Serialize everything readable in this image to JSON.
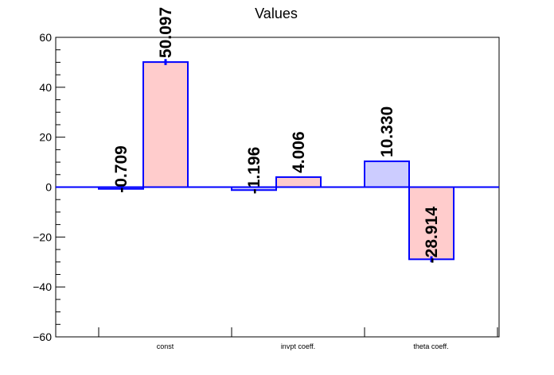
{
  "chart_data": {
    "type": "bar",
    "title": "Values",
    "xlabel": "",
    "ylabel": "",
    "ylim": [
      -60,
      60
    ],
    "yticks": [
      -60,
      -40,
      -20,
      0,
      20,
      40,
      60
    ],
    "categories": [
      "const",
      "invpt coeff.",
      "theta coeff."
    ],
    "bars": [
      {
        "category": "const",
        "value": -0.709,
        "label": "-0.709",
        "fill": "#ccccff",
        "error": 0.3
      },
      {
        "category": "const",
        "value": 50.097,
        "label": "50.097",
        "fill": "#ffcccc",
        "error": 1.2
      },
      {
        "category": "invpt coeff.",
        "value": -1.196,
        "label": "-1.196",
        "fill": "#ccccff",
        "error": 0.3
      },
      {
        "category": "invpt coeff.",
        "value": 4.006,
        "label": "4.006",
        "fill": "#ffcccc",
        "error": 0.3
      },
      {
        "category": "theta coeff.",
        "value": 10.33,
        "label": "10.330",
        "fill": "#ccccff",
        "error": 0.0
      },
      {
        "category": "theta coeff.",
        "value": -28.914,
        "label": "-28.914",
        "fill": "#ffcccc",
        "error": 1.2
      }
    ],
    "grid": false,
    "colors": {
      "outline": "#0000ff",
      "axis": "#000000"
    }
  }
}
